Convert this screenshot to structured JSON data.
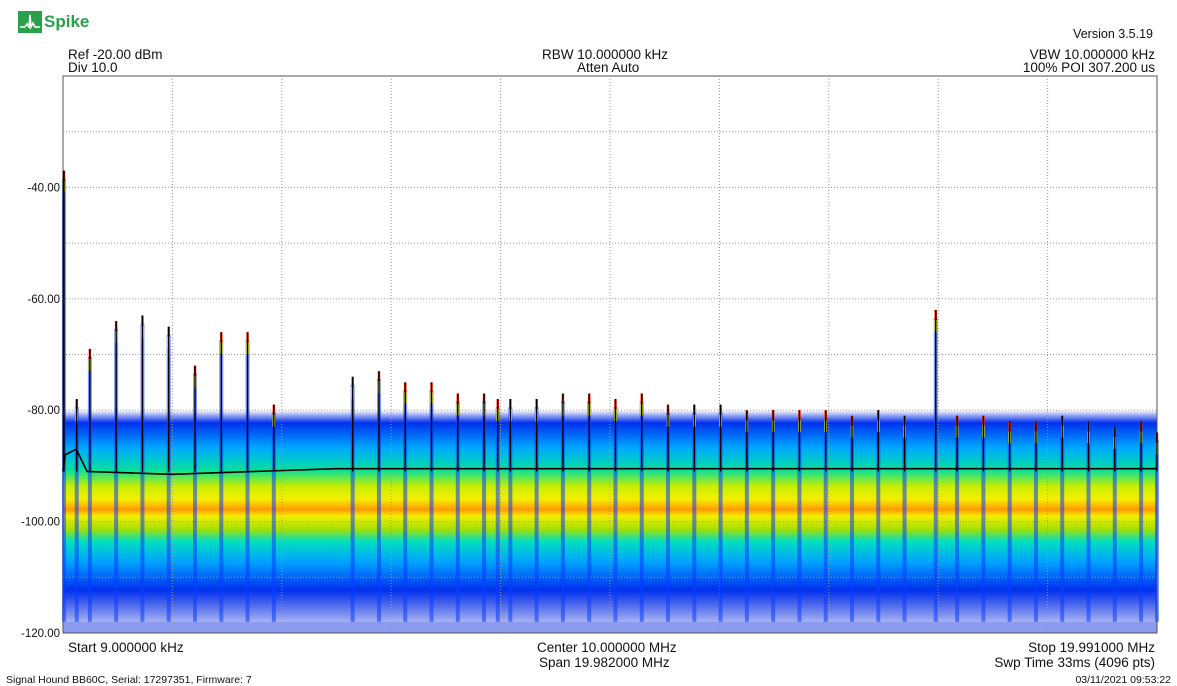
{
  "app": {
    "name": "Spike",
    "version": "Version 3.5.19"
  },
  "header": {
    "ref": "Ref -20.00 dBm",
    "div": "Div 10.0",
    "rbw": "RBW 10.000000 kHz",
    "atten": "Atten Auto",
    "vbw": "VBW 10.000000 kHz",
    "poi": "100% POI 307.200 us"
  },
  "footer": {
    "start": "Start 9.000000 kHz",
    "center": "Center 10.000000 MHz",
    "span": "Span 19.982000 MHz",
    "stop": "Stop 19.991000 MHz",
    "swp": "Swp Time 33ms (4096 pts)",
    "device": "Signal Hound BB60C, Serial: 17297351, Firmware: 7",
    "timestamp": "03/11/2021 09:53:22"
  },
  "colors": {
    "grid": "#9a9a9a",
    "trace": "#000000",
    "persistence_hot": "#ff2a00",
    "persistence_warm": "#f4ef00",
    "persistence_mid": "#00e0a0",
    "persistence_cool": "#00aaff",
    "persistence_cold": "#0022dd"
  },
  "chart_data": {
    "type": "line",
    "title": "",
    "xlabel": "",
    "ylabel": "",
    "xlim": [
      0.009,
      19.991
    ],
    "ylim": [
      -120,
      -20
    ],
    "yticks": [
      "-40.00",
      "-60.00",
      "-80.00",
      "-100.00",
      "-120.00"
    ],
    "ytick_values": [
      -40,
      -60,
      -80,
      -100,
      -120
    ],
    "grid": true,
    "noise_floor_dbm": -91,
    "persistence_band_dbm": [
      -118,
      -80
    ],
    "series": [
      {
        "points": [
          [
            0.009,
            -91
          ],
          [
            0.009,
            -37
          ],
          [
            0.05,
            -88
          ],
          [
            0.25,
            -87
          ],
          [
            0.45,
            -91
          ],
          [
            2,
            -91.5
          ],
          [
            5,
            -90.5
          ],
          [
            10,
            -90.5
          ],
          [
            15,
            -90.5
          ],
          [
            19.991,
            -90.5
          ]
        ],
        "peaks": [
          [
            0.009,
            -37
          ],
          [
            0.26,
            -78
          ],
          [
            0.5,
            -69
          ],
          [
            0.98,
            -64
          ],
          [
            1.46,
            -63
          ],
          [
            1.94,
            -65
          ],
          [
            2.42,
            -72
          ],
          [
            2.9,
            -66
          ],
          [
            3.38,
            -66
          ],
          [
            3.86,
            -79
          ],
          [
            5.3,
            -74
          ],
          [
            5.78,
            -73
          ],
          [
            6.26,
            -75
          ],
          [
            6.74,
            -75
          ],
          [
            7.22,
            -77
          ],
          [
            7.7,
            -77
          ],
          [
            7.95,
            -78
          ],
          [
            8.18,
            -78
          ],
          [
            8.66,
            -78
          ],
          [
            9.14,
            -77
          ],
          [
            9.62,
            -77
          ],
          [
            10.1,
            -78
          ],
          [
            10.58,
            -77
          ],
          [
            11.06,
            -79
          ],
          [
            11.54,
            -79
          ],
          [
            12.02,
            -79
          ],
          [
            12.5,
            -80
          ],
          [
            12.98,
            -80
          ],
          [
            13.46,
            -80
          ],
          [
            13.94,
            -80
          ],
          [
            14.42,
            -81
          ],
          [
            14.9,
            -80
          ],
          [
            15.38,
            -81
          ],
          [
            15.95,
            -62
          ],
          [
            16.34,
            -81
          ],
          [
            16.82,
            -81
          ],
          [
            17.3,
            -82
          ],
          [
            17.78,
            -82
          ],
          [
            18.26,
            -81
          ],
          [
            18.74,
            -82
          ],
          [
            19.22,
            -83
          ],
          [
            19.7,
            -82
          ],
          [
            19.99,
            -84
          ]
        ]
      }
    ]
  }
}
